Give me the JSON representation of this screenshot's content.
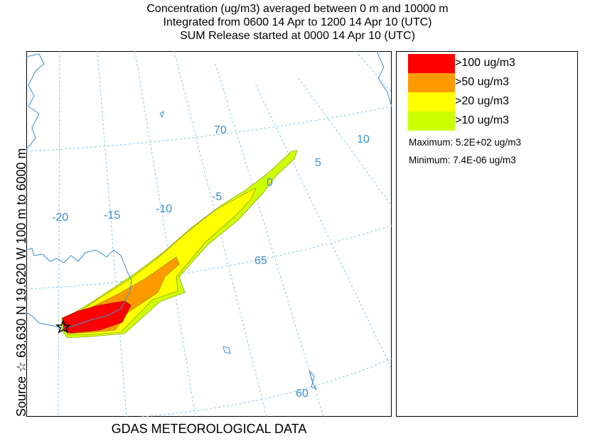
{
  "title": {
    "line1": "Concentration  (ug/m3) averaged between     0 m and 10000 m",
    "line2": "Integrated from 0600 14 Apr to 1200 14 Apr 10 (UTC)",
    "line3": "SUM  Release started at 0000 14 Apr 10 (UTC)"
  },
  "y_label": "Source ☆ 63.630  N  19.620  W  100 m to 6000 m",
  "x_label": "GDAS METEOROLOGICAL DATA",
  "grid_labels": {
    "lon": [
      "-20",
      "-15",
      "-10",
      "-5",
      "0",
      "5",
      "10"
    ],
    "lat": [
      "70",
      "65",
      "60"
    ]
  },
  "legend": {
    "levels": [
      {
        "label": ">100 ug/m3",
        "color": "#ff0000"
      },
      {
        "label": ">50 ug/m3",
        "color": "#ff9900"
      },
      {
        "label": ">20 ug/m3",
        "color": "#ffff00"
      },
      {
        "label": ">10 ug/m3",
        "color": "#ccff00"
      }
    ],
    "maximum": "Maximum: 5.2E+02 ug/m3",
    "minimum": "Minimum: 7.4E-06 ug/m3"
  }
}
